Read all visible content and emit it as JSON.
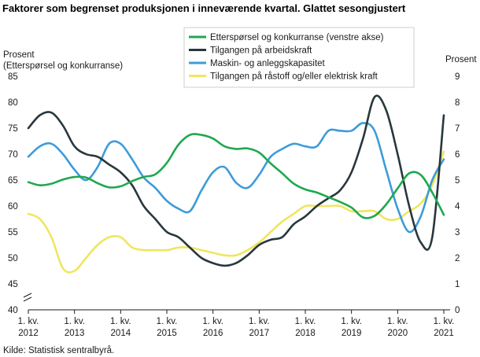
{
  "chart_data": {
    "type": "line",
    "title": "Faktorer som begrenset produksjonen i inneværende kvartal. Glattet sesongjustert",
    "ylabel_left": [
      "Prosent",
      "(Etterspørsel og konkurranse)"
    ],
    "ylabel_right": "Prosent",
    "ylim_left": [
      40,
      85
    ],
    "yticks_left": [
      "40",
      "45",
      "50",
      "55",
      "60",
      "65",
      "70",
      "75",
      "80",
      "85"
    ],
    "ylim_right": [
      0,
      9
    ],
    "yticks_right": [
      "0",
      "1",
      "2",
      "3",
      "4",
      "5",
      "6",
      "7",
      "8",
      "9"
    ],
    "x_categories": [
      "2012Q1",
      "2012Q2",
      "2012Q3",
      "2012Q4",
      "2013Q1",
      "2013Q2",
      "2013Q3",
      "2013Q4",
      "2014Q1",
      "2014Q2",
      "2014Q3",
      "2014Q4",
      "2015Q1",
      "2015Q2",
      "2015Q3",
      "2015Q4",
      "2016Q1",
      "2016Q2",
      "2016Q3",
      "2016Q4",
      "2017Q1",
      "2017Q2",
      "2017Q3",
      "2017Q4",
      "2018Q1",
      "2018Q2",
      "2018Q3",
      "2018Q4",
      "2019Q1",
      "2019Q2",
      "2019Q3",
      "2019Q4",
      "2020Q1",
      "2020Q2",
      "2020Q3",
      "2020Q4",
      "2021Q1"
    ],
    "xtick_labels": [
      {
        "line1": "1. kv.",
        "line2": "2012"
      },
      {
        "line1": "1. kv.",
        "line2": "2013"
      },
      {
        "line1": "1. kv.",
        "line2": "2014"
      },
      {
        "line1": "1. kv.",
        "line2": "2015"
      },
      {
        "line1": "1. kv.",
        "line2": "2016"
      },
      {
        "line1": "1. kv.",
        "line2": "2017"
      },
      {
        "line1": "1. kv.",
        "line2": "2018"
      },
      {
        "line1": "1. kv.",
        "line2": "2019"
      },
      {
        "line1": "1. kv.",
        "line2": "2020"
      },
      {
        "line1": "1. kv.",
        "line2": "2021"
      }
    ],
    "axis_break_left": true,
    "grid": false,
    "legend_position": "top-center",
    "series": [
      {
        "name": "Etterspørsel og konkurranse (venstre akse)",
        "axis": "left",
        "color": "#1fa84f",
        "values": [
          64.6,
          64.0,
          64.3,
          65.1,
          65.6,
          65.5,
          64.4,
          63.6,
          63.8,
          64.8,
          65.6,
          66.1,
          68.3,
          71.8,
          73.7,
          73.7,
          73.0,
          71.5,
          71.0,
          71.1,
          70.3,
          68.2,
          66.3,
          64.3,
          63.2,
          62.6,
          61.7,
          60.8,
          59.7,
          57.8,
          58.1,
          60.3,
          63.4,
          66.3,
          66.0,
          62.6,
          58.3
        ]
      },
      {
        "name": "Tilgangen på arbeidskraft",
        "axis": "right",
        "color": "#28373c",
        "values": [
          7.0,
          7.5,
          7.6,
          7.1,
          6.3,
          6.0,
          5.9,
          5.6,
          5.3,
          4.8,
          4.0,
          3.5,
          3.0,
          2.8,
          2.4,
          2.0,
          1.8,
          1.7,
          1.8,
          2.1,
          2.5,
          2.7,
          2.8,
          3.3,
          3.6,
          4.0,
          4.3,
          4.6,
          5.3,
          6.6,
          8.2,
          7.7,
          6.0,
          4.0,
          2.6,
          2.8,
          7.5
        ]
      },
      {
        "name": "Maskin- og anleggskapasitet",
        "axis": "right",
        "color": "#3d9cd9",
        "values": [
          5.9,
          6.3,
          6.4,
          6.0,
          5.4,
          5.0,
          5.5,
          6.4,
          6.4,
          5.8,
          5.1,
          4.7,
          4.2,
          3.9,
          3.8,
          4.6,
          5.3,
          5.5,
          4.9,
          4.7,
          5.2,
          5.9,
          6.2,
          6.4,
          6.3,
          6.3,
          6.9,
          6.9,
          6.9,
          7.2,
          6.9,
          5.4,
          3.9,
          3.0,
          3.6,
          5.0,
          5.8
        ]
      },
      {
        "name": "Tilgangen på råstoff og/eller elektrisk kraft",
        "axis": "right",
        "color": "#efe65f",
        "values": [
          3.7,
          3.5,
          2.8,
          1.6,
          1.5,
          2.0,
          2.5,
          2.8,
          2.8,
          2.4,
          2.3,
          2.3,
          2.3,
          2.4,
          2.4,
          2.3,
          2.2,
          2.1,
          2.1,
          2.3,
          2.6,
          3.0,
          3.4,
          3.7,
          4.0,
          4.0,
          4.0,
          4.0,
          3.8,
          3.8,
          3.8,
          3.5,
          3.5,
          3.8,
          4.1,
          4.8,
          6.1
        ]
      }
    ]
  },
  "source": "Kilde: Statistisk sentralbyrå."
}
